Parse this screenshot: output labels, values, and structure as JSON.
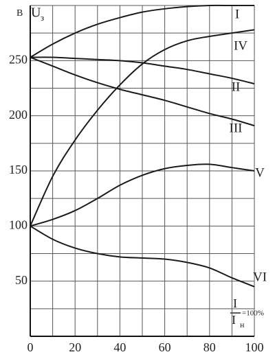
{
  "chart_data": {
    "type": "line",
    "yunit": "В",
    "ylabel": "U",
    "ylabel_sub": "з",
    "xlabel_num": "I",
    "xlabel_den": "I",
    "xlabel_den_sub": "н",
    "xlabel_note": "=100%",
    "x": [
      0,
      10,
      20,
      30,
      40,
      50,
      60,
      70,
      80,
      90,
      100
    ],
    "xlim": [
      0,
      100
    ],
    "xticks": [
      0,
      20,
      40,
      60,
      80,
      100
    ],
    "xgrid": [
      0,
      10,
      20,
      30,
      40,
      50,
      60,
      70,
      80,
      90,
      100
    ],
    "ylim": [
      0,
      300
    ],
    "yticks": [
      50,
      100,
      150,
      200,
      250
    ],
    "ygrid": [
      0,
      25,
      50,
      75,
      100,
      125,
      150,
      175,
      200,
      225,
      250,
      275,
      300
    ],
    "grid": true,
    "series": [
      {
        "name": "I",
        "color": "#1a1a1a",
        "values": [
          253,
          265,
          275,
          283,
          289,
          294,
          297,
          299,
          300,
          300,
          300
        ]
      },
      {
        "name": "IV",
        "color": "#1a1a1a",
        "values": [
          100,
          145,
          178,
          205,
          228,
          247,
          260,
          268,
          272,
          275,
          278
        ]
      },
      {
        "name": "II",
        "color": "#1a1a1a",
        "values": [
          253,
          253,
          252,
          251,
          250,
          248,
          245,
          242,
          238,
          234,
          229
        ]
      },
      {
        "name": "III",
        "color": "#1a1a1a",
        "values": [
          253,
          245,
          237,
          230,
          224,
          219,
          214,
          208,
          202,
          197,
          191
        ]
      },
      {
        "name": "V",
        "color": "#1a1a1a",
        "values": [
          100,
          106,
          114,
          125,
          137,
          146,
          152,
          155,
          156,
          153,
          150
        ]
      },
      {
        "name": "VI",
        "color": "#1a1a1a",
        "values": [
          100,
          88,
          80,
          75,
          72,
          71,
          70,
          67,
          62,
          53,
          45
        ]
      }
    ]
  }
}
